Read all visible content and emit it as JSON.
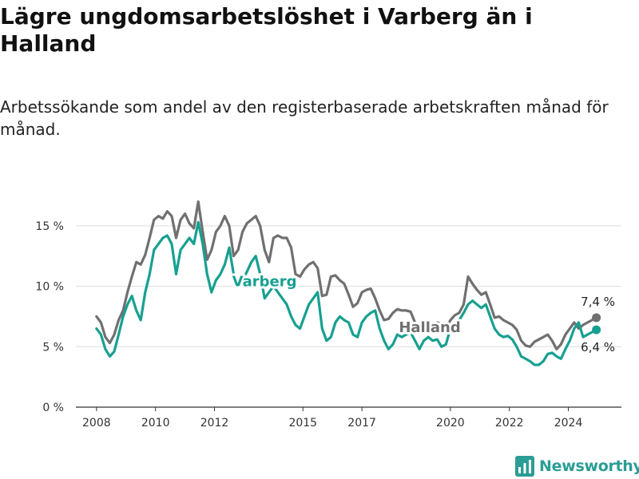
{
  "title": "Lägre ungdomsarbetslöshet i Varberg än i Halland",
  "subtitle": "Arbetssökande som andel av den registerbaserade arbetskraften månad för månad.",
  "brand": {
    "name": "Newsworthy",
    "icon": "newsworthy-logo-icon"
  },
  "colors": {
    "halland": "#707070",
    "varberg": "#17a090",
    "grid": "#dddddd",
    "axis": "#333333",
    "brand": "#2a9d95"
  },
  "chart_data": {
    "type": "line",
    "xlabel": "",
    "ylabel": "",
    "ylim": [
      0,
      17.5
    ],
    "y_ticks": [
      {
        "value": 0,
        "label": "0 %"
      },
      {
        "value": 5,
        "label": "5 %"
      },
      {
        "value": 10,
        "label": "10 %"
      },
      {
        "value": 15,
        "label": "15 %"
      }
    ],
    "x_ticks": [
      {
        "value": 2008,
        "label": "2008"
      },
      {
        "value": 2010,
        "label": "2010"
      },
      {
        "value": 2012,
        "label": "2012"
      },
      {
        "value": 2015,
        "label": "2015"
      },
      {
        "value": 2017,
        "label": "2017"
      },
      {
        "value": 2020,
        "label": "2020"
      },
      {
        "value": 2022,
        "label": "2022"
      },
      {
        "value": 2024,
        "label": "2024"
      }
    ],
    "xlim": [
      2007.3,
      2025.8
    ],
    "grid": "horizontal",
    "series": [
      {
        "name": "Halland",
        "color": "#707070",
        "end_label": "7,4 %",
        "x": [
          2008.0,
          2008.15,
          2008.3,
          2008.45,
          2008.6,
          2008.75,
          2008.9,
          2009.05,
          2009.2,
          2009.35,
          2009.5,
          2009.65,
          2009.8,
          2009.95,
          2010.1,
          2010.25,
          2010.4,
          2010.55,
          2010.7,
          2010.85,
          2011.0,
          2011.15,
          2011.3,
          2011.45,
          2011.6,
          2011.75,
          2011.9,
          2012.05,
          2012.2,
          2012.35,
          2012.5,
          2012.65,
          2012.8,
          2012.95,
          2013.1,
          2013.25,
          2013.4,
          2013.55,
          2013.7,
          2013.85,
          2014.0,
          2014.15,
          2014.3,
          2014.45,
          2014.6,
          2014.75,
          2014.9,
          2015.05,
          2015.2,
          2015.35,
          2015.5,
          2015.65,
          2015.8,
          2015.95,
          2016.1,
          2016.25,
          2016.4,
          2016.55,
          2016.7,
          2016.85,
          2017.0,
          2017.15,
          2017.3,
          2017.45,
          2017.6,
          2017.75,
          2017.9,
          2018.05,
          2018.2,
          2018.35,
          2018.5,
          2018.65,
          2018.8,
          2018.95,
          2019.1,
          2019.25,
          2019.4,
          2019.55,
          2019.7,
          2019.85,
          2020.0,
          2020.15,
          2020.3,
          2020.45,
          2020.6,
          2020.75,
          2020.9,
          2021.05,
          2021.2,
          2021.35,
          2021.5,
          2021.65,
          2021.8,
          2021.95,
          2022.1,
          2022.25,
          2022.4,
          2022.55,
          2022.7,
          2022.85,
          2023.0,
          2023.15,
          2023.3,
          2023.45,
          2023.6,
          2023.75,
          2023.9,
          2024.05,
          2024.2,
          2024.35,
          2024.5,
          2024.65,
          2024.8,
          2024.95
        ],
        "y": [
          7.5,
          7.0,
          5.8,
          5.3,
          6.0,
          7.2,
          8.0,
          9.5,
          10.8,
          12.0,
          11.8,
          12.6,
          14.0,
          15.5,
          15.8,
          15.6,
          16.2,
          15.8,
          14.0,
          15.5,
          16.0,
          15.2,
          14.8,
          17.0,
          14.5,
          12.2,
          13.0,
          14.5,
          15.0,
          15.8,
          15.0,
          12.5,
          13.0,
          14.5,
          15.2,
          15.5,
          15.8,
          15.0,
          13.0,
          12.0,
          14.0,
          14.2,
          14.0,
          14.0,
          13.2,
          11.0,
          10.8,
          11.4,
          11.8,
          12.0,
          11.5,
          9.2,
          9.3,
          10.8,
          10.9,
          10.5,
          10.2,
          9.3,
          8.3,
          8.6,
          9.5,
          9.7,
          9.8,
          9.0,
          8.0,
          7.2,
          7.3,
          7.8,
          8.1,
          8.0,
          8.0,
          7.9,
          7.0,
          6.4,
          7.0,
          6.9,
          6.7,
          7.0,
          6.9,
          6.5,
          7.2,
          7.6,
          7.8,
          8.5,
          10.8,
          10.2,
          9.7,
          9.3,
          9.5,
          8.5,
          7.4,
          7.5,
          7.2,
          7.0,
          6.8,
          6.4,
          5.5,
          5.1,
          5.0,
          5.4,
          5.6,
          5.8,
          6.0,
          5.5,
          4.8,
          5.2,
          6.0,
          6.5,
          7.0,
          6.5,
          6.8,
          7.0,
          7.2,
          7.4
        ]
      },
      {
        "name": "Varberg",
        "color": "#17a090",
        "end_label": "6,4 %",
        "x": [
          2008.0,
          2008.15,
          2008.3,
          2008.45,
          2008.6,
          2008.75,
          2008.9,
          2009.05,
          2009.2,
          2009.35,
          2009.5,
          2009.65,
          2009.8,
          2009.95,
          2010.1,
          2010.25,
          2010.4,
          2010.55,
          2010.7,
          2010.85,
          2011.0,
          2011.15,
          2011.3,
          2011.45,
          2011.6,
          2011.75,
          2011.9,
          2012.05,
          2012.2,
          2012.35,
          2012.5,
          2012.65,
          2012.8,
          2012.95,
          2013.1,
          2013.25,
          2013.4,
          2013.55,
          2013.7,
          2013.85,
          2014.0,
          2014.15,
          2014.3,
          2014.45,
          2014.6,
          2014.75,
          2014.9,
          2015.05,
          2015.2,
          2015.35,
          2015.5,
          2015.65,
          2015.8,
          2015.95,
          2016.1,
          2016.25,
          2016.4,
          2016.55,
          2016.7,
          2016.85,
          2017.0,
          2017.15,
          2017.3,
          2017.45,
          2017.6,
          2017.75,
          2017.9,
          2018.05,
          2018.2,
          2018.35,
          2018.5,
          2018.65,
          2018.8,
          2018.95,
          2019.1,
          2019.25,
          2019.4,
          2019.55,
          2019.7,
          2019.85,
          2020.0,
          2020.15,
          2020.3,
          2020.45,
          2020.6,
          2020.75,
          2020.9,
          2021.05,
          2021.2,
          2021.35,
          2021.5,
          2021.65,
          2021.8,
          2021.95,
          2022.1,
          2022.25,
          2022.4,
          2022.55,
          2022.7,
          2022.85,
          2023.0,
          2023.15,
          2023.3,
          2023.45,
          2023.6,
          2023.75,
          2023.9,
          2024.05,
          2024.2,
          2024.35,
          2024.5,
          2024.65,
          2024.8,
          2024.95
        ],
        "y": [
          6.5,
          6.0,
          4.8,
          4.2,
          4.6,
          6.0,
          7.5,
          8.5,
          9.2,
          8.0,
          7.2,
          9.5,
          11.0,
          13.0,
          13.5,
          14.0,
          14.2,
          13.5,
          11.0,
          13.0,
          13.5,
          14.0,
          13.5,
          15.3,
          13.5,
          11.0,
          9.5,
          10.5,
          11.0,
          11.8,
          13.2,
          11.0,
          10.0,
          10.5,
          11.2,
          12.0,
          12.5,
          11.0,
          9.0,
          9.5,
          10.0,
          9.5,
          9.0,
          8.5,
          7.5,
          6.8,
          6.5,
          7.5,
          8.5,
          9.0,
          9.5,
          6.5,
          5.5,
          5.8,
          7.0,
          7.5,
          7.2,
          7.0,
          6.0,
          5.8,
          7.0,
          7.5,
          7.8,
          8.0,
          6.5,
          5.5,
          4.8,
          5.2,
          6.0,
          5.8,
          6.0,
          6.2,
          5.5,
          4.8,
          5.5,
          5.8,
          5.5,
          5.6,
          5.0,
          5.2,
          6.5,
          7.0,
          7.2,
          7.8,
          8.5,
          8.8,
          8.5,
          8.2,
          8.5,
          7.5,
          6.5,
          6.0,
          5.8,
          5.9,
          5.6,
          5.0,
          4.2,
          4.0,
          3.8,
          3.5,
          3.5,
          3.8,
          4.4,
          4.5,
          4.2,
          4.0,
          4.8,
          5.5,
          6.5,
          7.0,
          5.8,
          6.0,
          6.2,
          6.4
        ]
      }
    ]
  }
}
